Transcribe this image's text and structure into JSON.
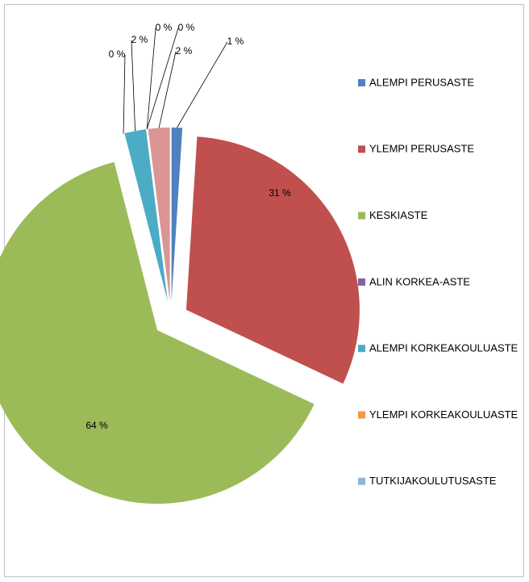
{
  "chart_data": {
    "type": "pie",
    "categories": [
      "ALEMPI PERUSASTE",
      "YLEMPI PERUSASTE",
      "KESKIASTE",
      "ALIN KORKEA-ASTE",
      "ALEMPI KORKEAKOULUASTE",
      "YLEMPI KORKEAKOULUASTE",
      "TUTKIJAKOULUTUSASTE",
      null
    ],
    "values": [
      1,
      31,
      64,
      0,
      2,
      0,
      0,
      2
    ],
    "value_labels": [
      "1 %",
      "31 %",
      "64 %",
      "0 %",
      "2 %",
      "0 %",
      "0 %",
      "2 %"
    ],
    "colors": [
      "#4f81bd",
      "#c0504d",
      "#9bbb59",
      "#8064a2",
      "#4bacc6",
      "#f79646",
      "#95b3d7",
      "#d99694"
    ],
    "legend": "right"
  }
}
